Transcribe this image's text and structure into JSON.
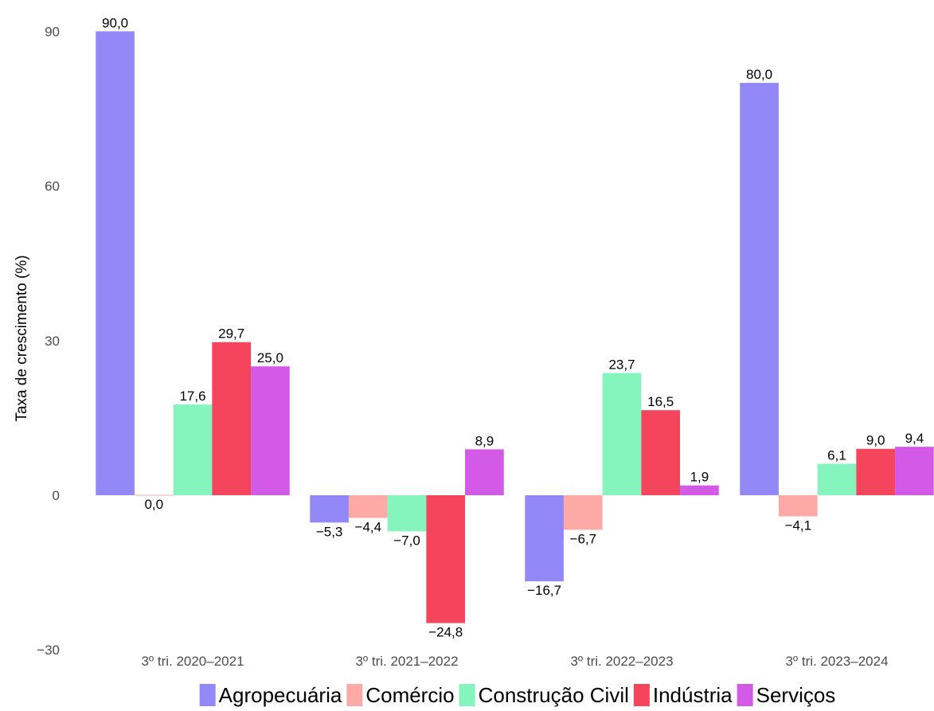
{
  "chart_data": {
    "type": "bar",
    "ylabel": "Taxa de crescimento (%)",
    "xlabel": "",
    "categories": [
      "3º tri. 2020–2021",
      "3º tri. 2021–2022",
      "3º tri. 2022–2023",
      "3º tri. 2023–2024"
    ],
    "ylim": [
      -30,
      92
    ],
    "yticks": [
      -30,
      0,
      30,
      60,
      90
    ],
    "ytick_labels": [
      "−30",
      "0",
      "30",
      "60",
      "90"
    ],
    "grid": false,
    "legend_position": "bottom",
    "series": [
      {
        "name": "Agropecuária",
        "color": "#9388f8",
        "values": [
          90.0,
          -5.3,
          -16.7,
          80.0
        ],
        "labels": [
          "90,0",
          "−5,3",
          "−16,7",
          "80,0"
        ]
      },
      {
        "name": "Comércio",
        "color": "#fdaaa6",
        "values": [
          0.0,
          -4.4,
          -6.7,
          -4.1
        ],
        "labels": [
          "0,0",
          "−4,4",
          "−6,7",
          "−4,1"
        ]
      },
      {
        "name": "Construção Civil",
        "color": "#86f5bd",
        "values": [
          17.6,
          -7.0,
          23.7,
          6.1
        ],
        "labels": [
          "17,6",
          "−7,0",
          "23,7",
          "6,1"
        ]
      },
      {
        "name": "Indústria",
        "color": "#f5455c",
        "values": [
          29.7,
          -24.8,
          16.5,
          9.0
        ],
        "labels": [
          "29,7",
          "−24,8",
          "16,5",
          "9,0"
        ]
      },
      {
        "name": "Serviços",
        "color": "#d35ae6",
        "values": [
          25.0,
          8.9,
          1.9,
          9.4
        ],
        "labels": [
          "25,0",
          "8,9",
          "1,9",
          "9,4"
        ]
      }
    ]
  }
}
